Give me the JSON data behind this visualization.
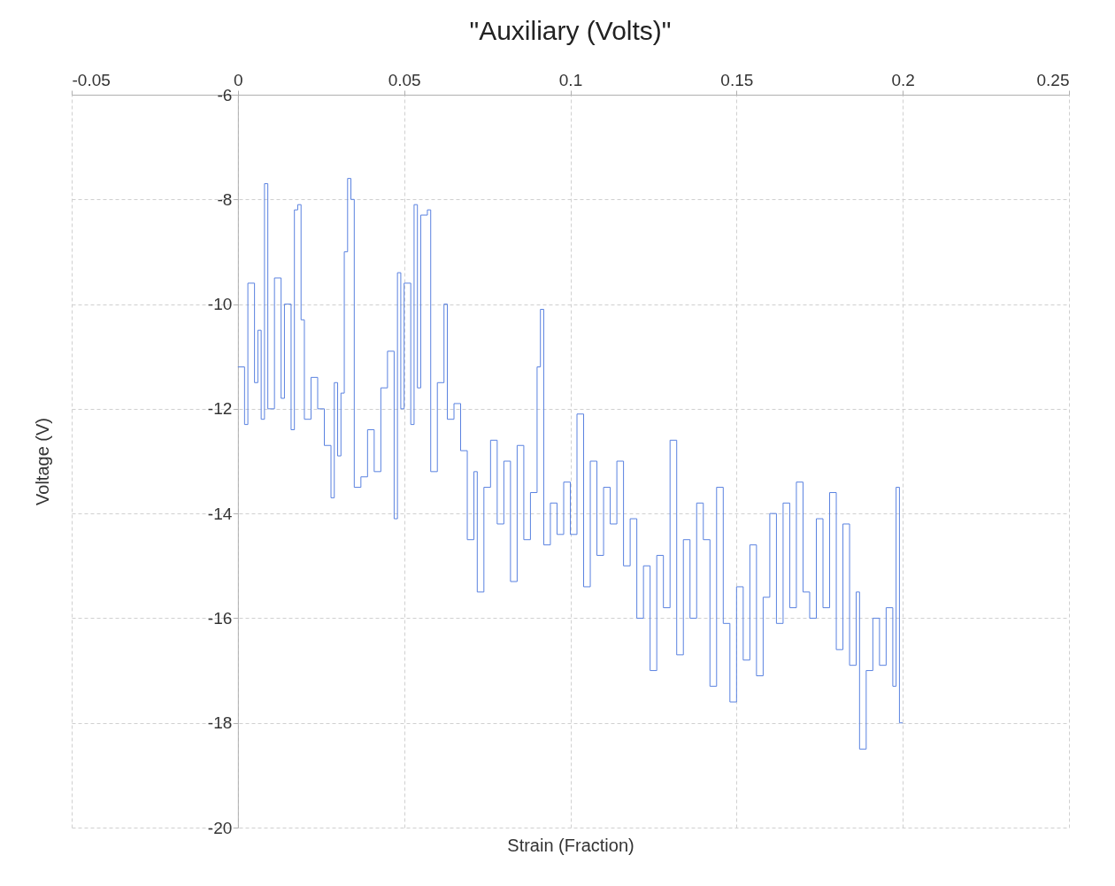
{
  "chart_data": {
    "type": "step",
    "title": "\"Auxiliary (Volts)\"",
    "xlabel": "Strain (Fraction)",
    "ylabel": "Voltage (V)",
    "xlim": [
      -0.05,
      0.25
    ],
    "xticks": [
      -0.05,
      0,
      0.05,
      0.1,
      0.15,
      0.2,
      0.25
    ],
    "ylim": [
      -20,
      -6
    ],
    "yticks": [
      -20,
      -18,
      -16,
      -14,
      -12,
      -10,
      -8,
      -6
    ],
    "grid": true,
    "series": [
      {
        "color": "#5a82e0",
        "x": [
          0,
          0.002,
          0.003,
          0.005,
          0.006,
          0.007,
          0.008,
          0.009,
          0.011,
          0.013,
          0.014,
          0.016,
          0.017,
          0.018,
          0.019,
          0.02,
          0.022,
          0.024,
          0.026,
          0.028,
          0.029,
          0.03,
          0.031,
          0.032,
          0.033,
          0.034,
          0.035,
          0.037,
          0.039,
          0.041,
          0.043,
          0.045,
          0.047,
          0.048,
          0.049,
          0.05,
          0.052,
          0.053,
          0.054,
          0.055,
          0.057,
          0.058,
          0.06,
          0.062,
          0.063,
          0.065,
          0.067,
          0.069,
          0.071,
          0.072,
          0.074,
          0.076,
          0.078,
          0.08,
          0.082,
          0.084,
          0.086,
          0.088,
          0.09,
          0.091,
          0.092,
          0.094,
          0.096,
          0.098,
          0.1,
          0.102,
          0.104,
          0.106,
          0.108,
          0.11,
          0.112,
          0.114,
          0.116,
          0.118,
          0.12,
          0.122,
          0.124,
          0.126,
          0.128,
          0.13,
          0.132,
          0.134,
          0.136,
          0.138,
          0.14,
          0.142,
          0.144,
          0.146,
          0.148,
          0.15,
          0.152,
          0.154,
          0.156,
          0.158,
          0.16,
          0.162,
          0.164,
          0.166,
          0.168,
          0.17,
          0.172,
          0.174,
          0.176,
          0.178,
          0.18,
          0.182,
          0.184,
          0.186,
          0.187,
          0.189,
          0.191,
          0.193,
          0.195,
          0.197,
          0.198,
          0.199,
          0.2
        ],
        "values": [
          -11.2,
          -12.3,
          -9.6,
          -11.5,
          -10.5,
          -12.2,
          -7.7,
          -12,
          -9.5,
          -11.8,
          -10,
          -12.4,
          -8.2,
          -8.1,
          -10.3,
          -12.2,
          -11.4,
          -12,
          -12.7,
          -13.7,
          -11.5,
          -12.9,
          -11.7,
          -9,
          -7.6,
          -8,
          -13.5,
          -13.3,
          -12.4,
          -13.2,
          -11.6,
          -10.9,
          -14.1,
          -9.4,
          -12,
          -9.6,
          -12.3,
          -8.1,
          -11.6,
          -8.3,
          -8.2,
          -13.2,
          -11.5,
          -10,
          -12.2,
          -11.9,
          -12.8,
          -14.5,
          -13.2,
          -15.5,
          -13.5,
          -12.6,
          -14.2,
          -13,
          -15.3,
          -12.7,
          -14.5,
          -13.6,
          -11.2,
          -10.1,
          -14.6,
          -13.8,
          -14.4,
          -13.4,
          -14.4,
          -12.1,
          -15.4,
          -13,
          -14.8,
          -13.5,
          -14.2,
          -13,
          -15,
          -14.1,
          -16,
          -15,
          -17,
          -14.8,
          -15.8,
          -12.6,
          -16.7,
          -14.5,
          -16,
          -13.8,
          -14.5,
          -17.3,
          -13.5,
          -16.1,
          -17.6,
          -15.4,
          -16.8,
          -14.6,
          -17.1,
          -15.6,
          -14,
          -16.1,
          -13.8,
          -15.8,
          -13.4,
          -15.5,
          -16,
          -14.1,
          -15.8,
          -13.6,
          -16.6,
          -14.2,
          -16.9,
          -15.5,
          -18.5,
          -17,
          -16,
          -16.9,
          -15.8,
          -17.3,
          -13.5,
          -18,
          -18
        ]
      }
    ]
  }
}
